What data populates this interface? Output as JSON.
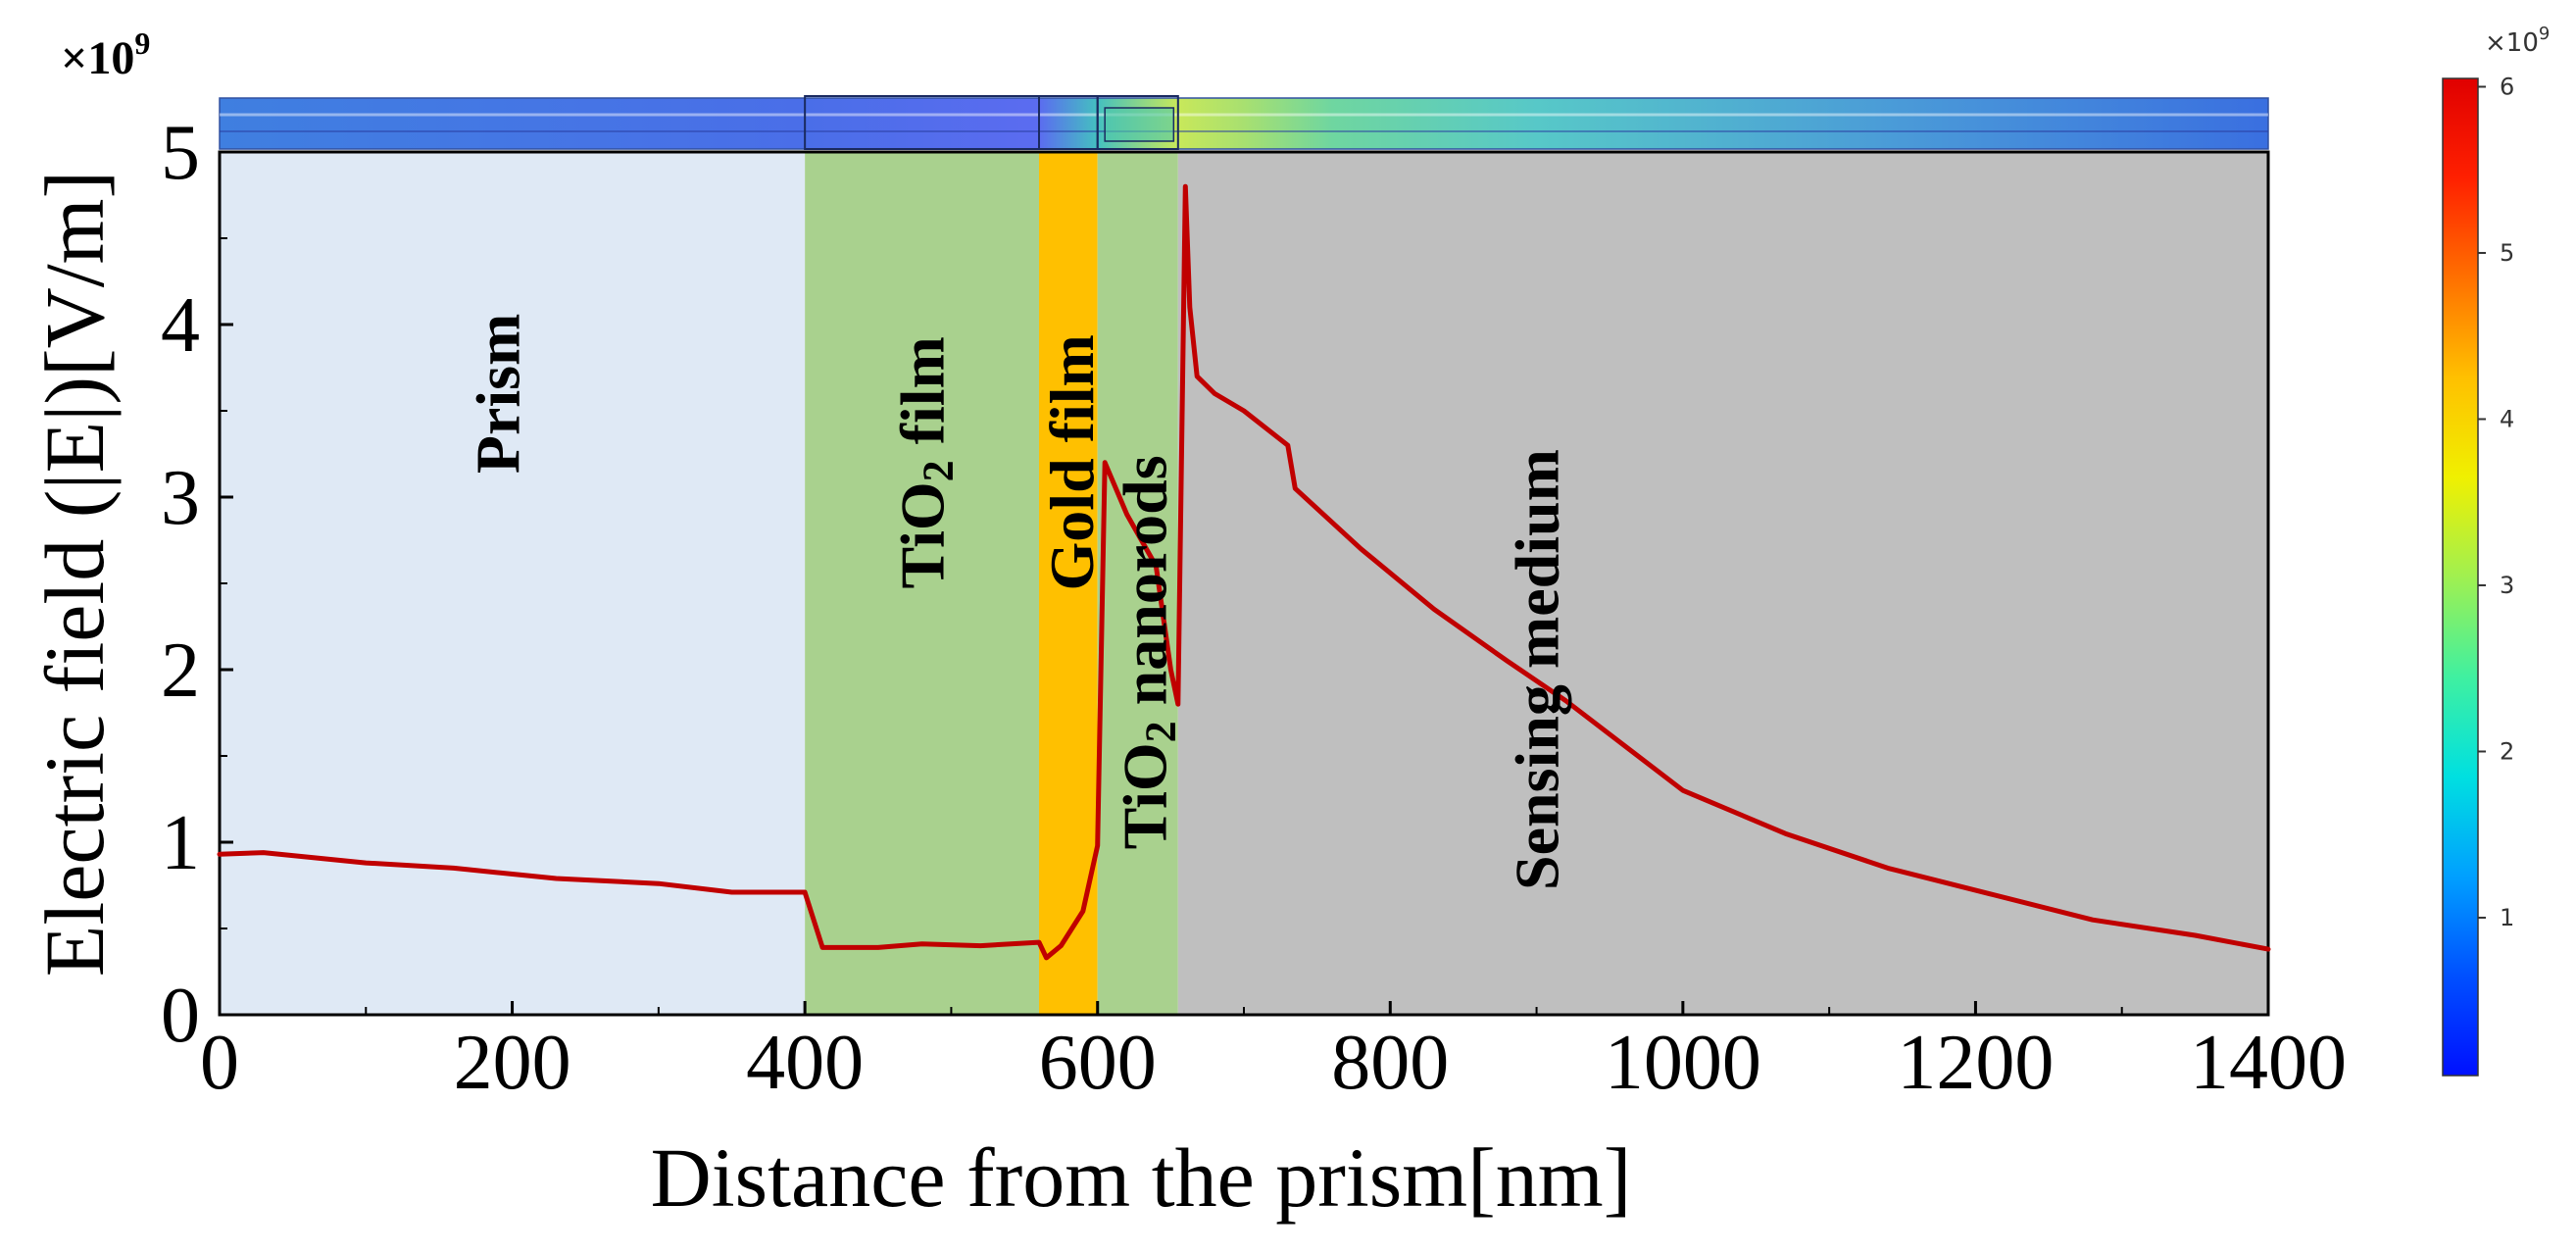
{
  "chart_data": {
    "type": "line",
    "title": "",
    "xlabel": "Distance from the prism[nm]",
    "ylabel": "Electric field (|E|)[V/m]",
    "y_multiplier_label": "×10",
    "y_multiplier_exp": "9",
    "xlim": [
      0,
      1400
    ],
    "ylim": [
      0,
      5
    ],
    "x_ticks": [
      0,
      200,
      400,
      600,
      800,
      1000,
      1200,
      1400
    ],
    "y_ticks": [
      0,
      1,
      2,
      3,
      4,
      5
    ],
    "regions": [
      {
        "label": "Prism",
        "sub": "",
        "label_after": "",
        "x_start": 0,
        "x_end": 400,
        "color": "#dfe9f5",
        "label_x": 190,
        "label_y": 3.6,
        "label_color": "#000000"
      },
      {
        "label": "TiO",
        "sub": "2",
        "label_after": " film",
        "x_start": 400,
        "x_end": 560,
        "color": "#a9d18e",
        "label_x": 480,
        "label_y": 3.2,
        "label_color": "#000000"
      },
      {
        "label": "Gold film",
        "sub": "",
        "label_after": "",
        "x_start": 560,
        "x_end": 600,
        "color": "#ffc000",
        "label_x": 582,
        "label_y": 3.2,
        "label_color": "#000000"
      },
      {
        "label": "TiO",
        "sub": "2",
        "label_after": " nanorods",
        "x_start": 600,
        "x_end": 655,
        "color": "#a9d18e",
        "label_x": 632,
        "label_y": 2.1,
        "label_color": "#000000"
      },
      {
        "label": "Sensing medium",
        "sub": "",
        "label_after": "",
        "x_start": 655,
        "x_end": 1400,
        "color": "#bfbfbf",
        "label_x": 900,
        "label_y": 2.0,
        "label_color": "#000000"
      }
    ],
    "series": [
      {
        "name": "|E|",
        "color": "#c00000",
        "x": [
          0,
          30,
          100,
          160,
          230,
          300,
          350,
          400,
          412,
          450,
          480,
          520,
          560,
          565,
          575,
          590,
          600,
          605,
          620,
          640,
          650,
          655,
          660,
          663,
          668,
          680,
          700,
          730,
          735,
          780,
          830,
          880,
          920,
          1000,
          1070,
          1140,
          1210,
          1280,
          1350,
          1400
        ],
        "y": [
          0.93,
          0.94,
          0.88,
          0.85,
          0.79,
          0.76,
          0.71,
          0.71,
          0.39,
          0.39,
          0.41,
          0.4,
          0.42,
          0.33,
          0.4,
          0.6,
          0.98,
          3.2,
          2.9,
          2.6,
          2.0,
          1.8,
          4.8,
          4.1,
          3.7,
          3.6,
          3.5,
          3.3,
          3.05,
          2.7,
          2.35,
          2.05,
          1.82,
          1.3,
          1.05,
          0.85,
          0.7,
          0.55,
          0.46,
          0.38
        ]
      }
    ],
    "top_strip": {
      "description": "field map bar",
      "stops": [
        {
          "x": 0,
          "color": "#3f7fe0"
        },
        {
          "x": 400,
          "color": "#4a6ee8"
        },
        {
          "x": 560,
          "color": "#5b6cf0"
        },
        {
          "x": 600,
          "color": "#44c0c0"
        },
        {
          "x": 655,
          "color": "#c8e85a"
        },
        {
          "x": 700,
          "color": "#a8e070"
        },
        {
          "x": 760,
          "color": "#6fd6a0"
        },
        {
          "x": 900,
          "color": "#57c8c8"
        },
        {
          "x": 1150,
          "color": "#4a9ad8"
        },
        {
          "x": 1400,
          "color": "#3a6fe0"
        }
      ]
    },
    "colorbar": {
      "multiplier": "×10",
      "multiplier_exp": "9",
      "ticks": [
        1,
        2,
        3,
        4,
        5,
        6
      ],
      "min": 0.05,
      "max": 6.05,
      "colors": [
        "#0010ff",
        "#0050ff",
        "#00a0ff",
        "#00e0e0",
        "#40f0a0",
        "#a0f050",
        "#f0f000",
        "#ffc000",
        "#ff7000",
        "#ff2000",
        "#e00000"
      ]
    }
  }
}
